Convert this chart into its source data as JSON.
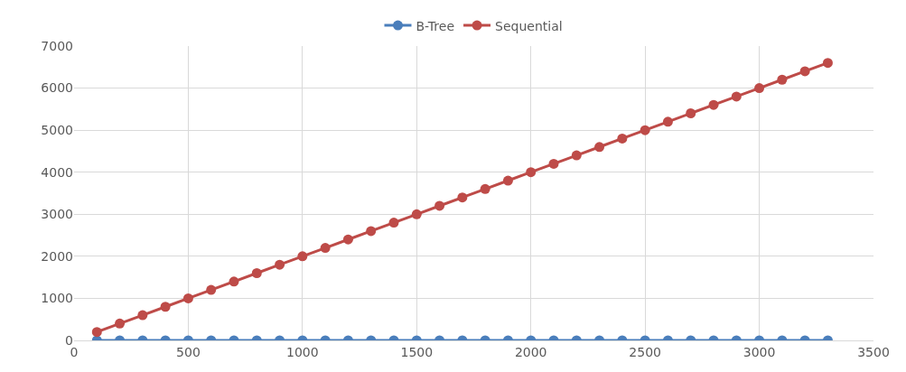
{
  "chart_data": {
    "type": "line",
    "x": [
      100,
      200,
      300,
      400,
      500,
      600,
      700,
      800,
      900,
      1000,
      1100,
      1200,
      1300,
      1400,
      1500,
      1600,
      1700,
      1800,
      1900,
      2000,
      2100,
      2200,
      2300,
      2400,
      2500,
      2600,
      2700,
      2800,
      2900,
      3000,
      3100,
      3200,
      3300
    ],
    "series": [
      {
        "name": "B-Tree",
        "color": "#4a7ebb",
        "values": [
          0,
          0,
          0,
          0,
          0,
          0,
          0,
          0,
          0,
          0,
          0,
          0,
          0,
          0,
          0,
          0,
          0,
          0,
          0,
          0,
          0,
          0,
          0,
          0,
          0,
          0,
          0,
          0,
          0,
          0,
          0,
          0,
          0
        ]
      },
      {
        "name": "Sequential",
        "color": "#be4b48",
        "values": [
          200,
          400,
          600,
          800,
          1000,
          1200,
          1400,
          1600,
          1800,
          2000,
          2200,
          2400,
          2600,
          2800,
          3000,
          3200,
          3400,
          3600,
          3800,
          4000,
          4200,
          4400,
          4600,
          4800,
          5000,
          5200,
          5400,
          5600,
          5800,
          6000,
          6200,
          6400,
          6600
        ]
      }
    ],
    "xlim": [
      0,
      3500
    ],
    "xticks": [
      0,
      500,
      1000,
      1500,
      2000,
      2500,
      3000,
      3500
    ],
    "ylim": [
      0,
      7000
    ],
    "yticks": [
      0,
      1000,
      2000,
      3000,
      4000,
      5000,
      6000,
      7000
    ],
    "grid": true,
    "legend": "top",
    "marker": "circle",
    "line_style": "solid"
  }
}
